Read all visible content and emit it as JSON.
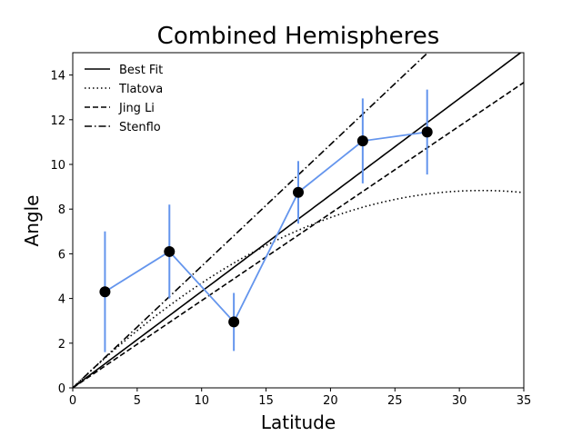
{
  "chart_data": {
    "type": "line",
    "title": "Combined Hemispheres",
    "xlabel": "Latitude",
    "ylabel": "Angle",
    "xlim": [
      0,
      35
    ],
    "ylim": [
      0,
      15
    ],
    "xticks": [
      0,
      5,
      10,
      15,
      20,
      25,
      30,
      35
    ],
    "yticks": [
      0,
      2,
      4,
      6,
      8,
      10,
      12,
      14
    ],
    "grid": false,
    "legend_position": "top-left",
    "data_series": {
      "x": [
        2.5,
        7.5,
        12.5,
        17.5,
        22.5,
        27.5
      ],
      "y": [
        4.3,
        6.1,
        2.95,
        8.75,
        11.05,
        11.45
      ],
      "yerr": [
        2.7,
        2.1,
        1.3,
        1.4,
        1.9,
        1.9
      ],
      "line_color": "#6495ed",
      "marker_color": "#000000"
    },
    "fit_lines": [
      {
        "name": "Best Fit",
        "style": "solid",
        "kind": "linear",
        "slope": 0.4316
      },
      {
        "name": "Tlatova",
        "style": "dotted",
        "kind": "quadratic",
        "a": 0.5563,
        "b": -0.00876
      },
      {
        "name": "Jing Li",
        "style": "dashed",
        "kind": "linear",
        "slope": 0.3905
      },
      {
        "name": "Stenflo",
        "style": "dashdot",
        "kind": "linear",
        "slope": 0.5445
      }
    ]
  }
}
